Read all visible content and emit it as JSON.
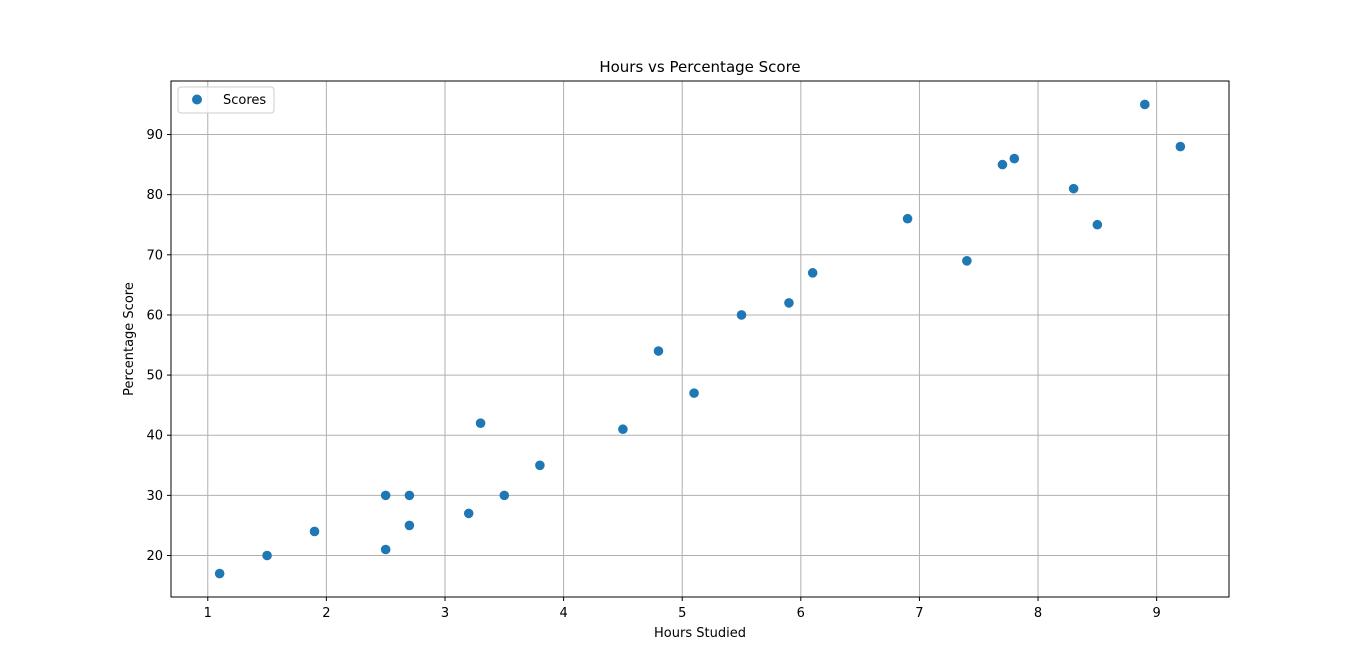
{
  "chart_data": {
    "type": "scatter",
    "title": "Hours vs Percentage Score",
    "xlabel": "Hours Studied",
    "ylabel": "Percentage Score",
    "xlim": [
      0.69,
      9.61
    ],
    "ylim": [
      13.1,
      98.9
    ],
    "xticks": [
      1,
      2,
      3,
      4,
      5,
      6,
      7,
      8,
      9
    ],
    "yticks": [
      20,
      30,
      40,
      50,
      60,
      70,
      80,
      90
    ],
    "grid": true,
    "legend": "top-left",
    "series": [
      {
        "name": "Scores",
        "color": "#1f77b4",
        "marker": "circle",
        "points": [
          {
            "x": 2.5,
            "y": 21
          },
          {
            "x": 5.1,
            "y": 47
          },
          {
            "x": 3.2,
            "y": 27
          },
          {
            "x": 8.5,
            "y": 75
          },
          {
            "x": 3.5,
            "y": 30
          },
          {
            "x": 1.5,
            "y": 20
          },
          {
            "x": 9.2,
            "y": 88
          },
          {
            "x": 5.5,
            "y": 60
          },
          {
            "x": 8.3,
            "y": 81
          },
          {
            "x": 2.7,
            "y": 25
          },
          {
            "x": 7.7,
            "y": 85
          },
          {
            "x": 5.9,
            "y": 62
          },
          {
            "x": 4.5,
            "y": 41
          },
          {
            "x": 3.3,
            "y": 42
          },
          {
            "x": 1.1,
            "y": 17
          },
          {
            "x": 8.9,
            "y": 95
          },
          {
            "x": 2.5,
            "y": 30
          },
          {
            "x": 1.9,
            "y": 24
          },
          {
            "x": 6.1,
            "y": 67
          },
          {
            "x": 7.4,
            "y": 69
          },
          {
            "x": 2.7,
            "y": 30
          },
          {
            "x": 4.8,
            "y": 54
          },
          {
            "x": 3.8,
            "y": 35
          },
          {
            "x": 6.9,
            "y": 76
          },
          {
            "x": 7.8,
            "y": 86
          }
        ]
      }
    ]
  }
}
